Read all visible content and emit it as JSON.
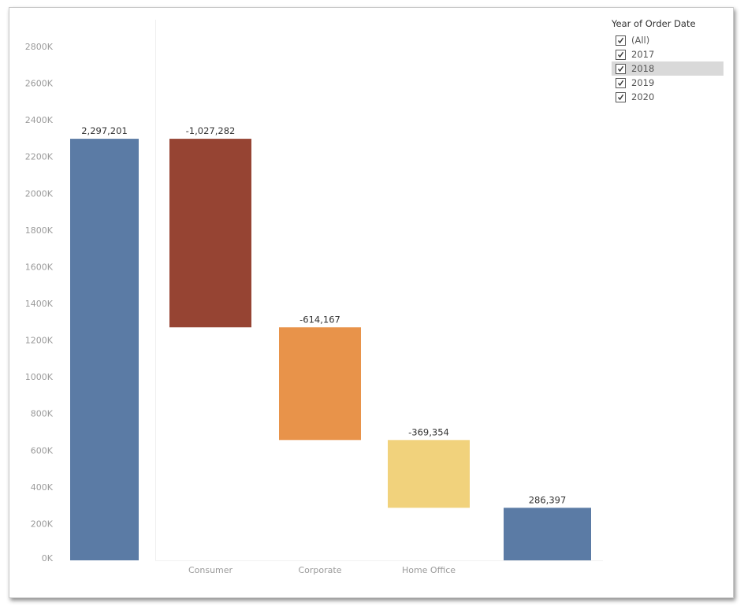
{
  "legend": {
    "title": "Year of Order Date",
    "items": [
      {
        "label": "(All)",
        "checked": true,
        "highlighted": false
      },
      {
        "label": "2017",
        "checked": true,
        "highlighted": false
      },
      {
        "label": "2018",
        "checked": true,
        "highlighted": true
      },
      {
        "label": "2019",
        "checked": true,
        "highlighted": false
      },
      {
        "label": "2020",
        "checked": true,
        "highlighted": false
      }
    ]
  },
  "chart_data": {
    "type": "waterfall",
    "title": "",
    "xlabel": "",
    "ylabel": "",
    "ylim": [
      0,
      2900000
    ],
    "y_ticks": [
      0,
      200000,
      400000,
      600000,
      800000,
      1000000,
      1200000,
      1400000,
      1600000,
      1800000,
      2000000,
      2200000,
      2400000,
      2600000,
      2800000
    ],
    "y_tick_labels": [
      "0K",
      "200K",
      "400K",
      "600K",
      "800K",
      "1000K",
      "1200K",
      "1400K",
      "1600K",
      "1800K",
      "2000K",
      "2200K",
      "2400K",
      "2600K",
      "2800K"
    ],
    "grid": false,
    "bars": [
      {
        "category": "",
        "kind": "total",
        "start": 0,
        "end": 2297201,
        "label": "2,297,201",
        "color": "#5b7ba5"
      },
      {
        "category": "Consumer",
        "kind": "delta",
        "start": 2297201,
        "end": 1269919,
        "label": "-1,027,282",
        "color": "#964433"
      },
      {
        "category": "Corporate",
        "kind": "delta",
        "start": 1269919,
        "end": 655752,
        "label": "-614,167",
        "color": "#e8934a"
      },
      {
        "category": "Home Office",
        "kind": "delta",
        "start": 655752,
        "end": 286398,
        "label": "-369,354",
        "color": "#f1d27c"
      },
      {
        "category": "",
        "kind": "total",
        "start": 0,
        "end": 286397,
        "label": "286,397",
        "color": "#5b7ba5"
      }
    ]
  }
}
